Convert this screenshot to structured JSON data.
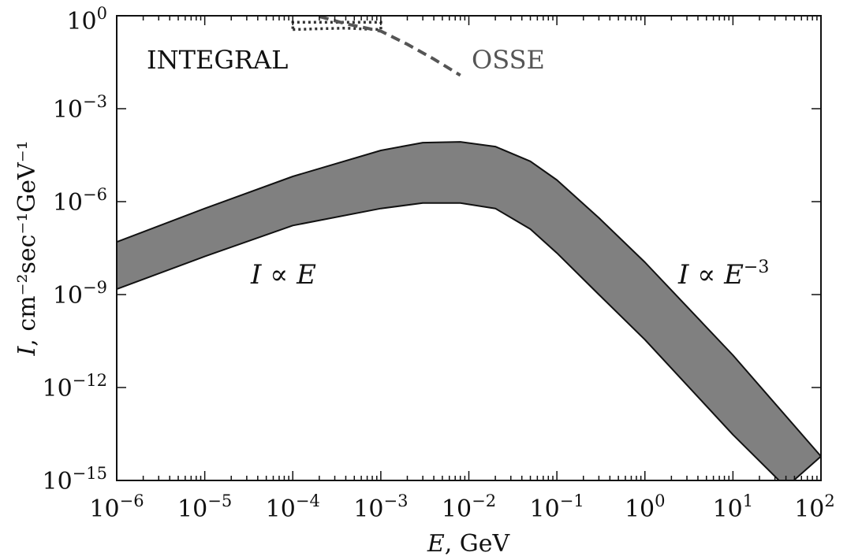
{
  "chart_data": {
    "type": "area",
    "title": "",
    "xscale": "log",
    "yscale": "log",
    "xlim": [
      1e-06,
      100
    ],
    "ylim": [
      1e-15,
      1
    ],
    "grid": false,
    "xlabel": {
      "italic": "E",
      "rest": ", GeV"
    },
    "ylabel": {
      "italic": "I",
      "rest": ", cm⁻²sec⁻¹GeV⁻¹"
    },
    "x_ticks": [
      {
        "value": 1e-06,
        "base": "10",
        "exp": "−6"
      },
      {
        "value": 1e-05,
        "base": "10",
        "exp": "−5"
      },
      {
        "value": 0.0001,
        "base": "10",
        "exp": "−4"
      },
      {
        "value": 0.001,
        "base": "10",
        "exp": "−3"
      },
      {
        "value": 0.01,
        "base": "10",
        "exp": "−2"
      },
      {
        "value": 0.1,
        "base": "10",
        "exp": "−1"
      },
      {
        "value": 1,
        "base": "10",
        "exp": "0"
      },
      {
        "value": 10,
        "base": "10",
        "exp": "1"
      },
      {
        "value": 100,
        "base": "10",
        "exp": "2"
      }
    ],
    "y_ticks": [
      {
        "value": 1,
        "base": "10",
        "exp": "0"
      },
      {
        "value": 0.001,
        "base": "10",
        "exp": "−3"
      },
      {
        "value": 1e-06,
        "base": "10",
        "exp": "−6"
      },
      {
        "value": 1e-09,
        "base": "10",
        "exp": "−9"
      },
      {
        "value": 1e-12,
        "base": "10",
        "exp": "−12"
      },
      {
        "value": 1e-15,
        "base": "10",
        "exp": "−15"
      }
    ],
    "band": {
      "upper": {
        "x": [
          1e-06,
          1e-05,
          0.0001,
          0.001,
          0.003,
          0.008,
          0.02,
          0.05,
          0.1,
          0.3,
          1,
          10,
          100
        ],
        "y": [
          5e-08,
          6e-07,
          6.5e-06,
          4.5e-05,
          8e-05,
          8.5e-05,
          6e-05,
          2e-05,
          5e-06,
          3e-07,
          1.1e-08,
          1.1e-11,
          6e-15
        ]
      },
      "lower": {
        "x": [
          1e-06,
          1e-05,
          0.0001,
          0.001,
          0.003,
          0.008,
          0.02,
          0.05,
          0.1,
          0.3,
          1,
          10,
          40
        ],
        "y": [
          1.5e-09,
          1.7e-08,
          1.7e-07,
          6e-07,
          9e-07,
          9e-07,
          6e-07,
          1.3e-07,
          2.2e-08,
          1e-09,
          3.5e-11,
          3e-14,
          6e-16
        ]
      }
    },
    "series": [
      {
        "name": "INTEGRAL",
        "style": "dotted",
        "color": "#333333",
        "x": [
          0.0001,
          0.0002,
          0.0004,
          0.0007,
          0.001,
          0.001,
          0.0001,
          0.0001
        ],
        "y": [
          0.36,
          0.38,
          0.4,
          0.37,
          0.36,
          0.62,
          0.62,
          0.36
        ]
      },
      {
        "name": "OSSE",
        "style": "dashed",
        "color": "#555555",
        "x": [
          0.0002,
          0.0004,
          0.001,
          0.002,
          0.004,
          0.008
        ],
        "y": [
          0.95,
          0.55,
          0.32,
          0.12,
          0.04,
          0.012
        ]
      }
    ],
    "annotations": [
      {
        "id": "low",
        "italic_a": "I",
        "op": " ∝ ",
        "italic_b": "E",
        "exp": ""
      },
      {
        "id": "high",
        "italic_a": "I",
        "op": " ∝ ",
        "italic_b": "E",
        "exp": "−3"
      }
    ],
    "legend_labels": {
      "integral": "INTEGRAL",
      "osse": "OSSE"
    },
    "colors": {
      "band_fill": "#808080",
      "band_edge": "#111111"
    }
  }
}
